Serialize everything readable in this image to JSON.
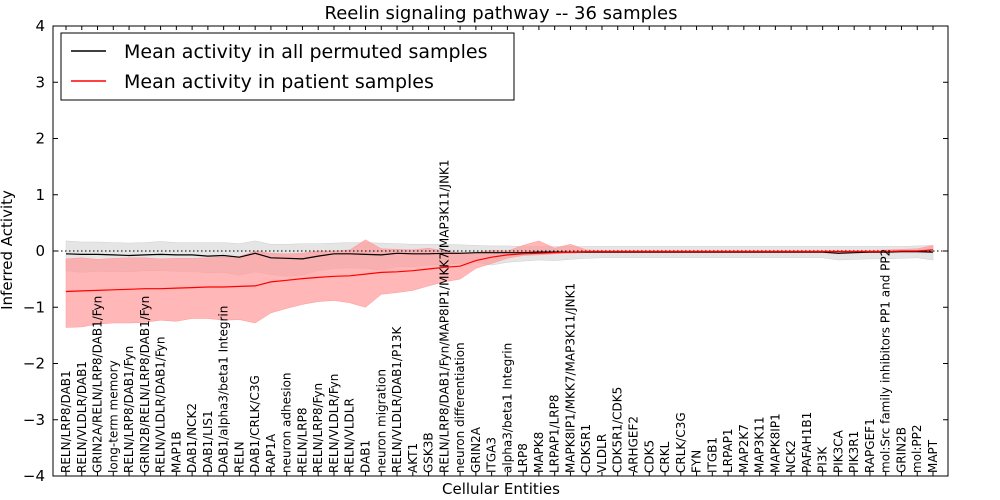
{
  "chart_data": {
    "type": "line",
    "title": "Reelin signaling pathway -- 36 samples",
    "xlabel": "Cellular Entities",
    "ylabel": "Inferred Activity",
    "ylim": [
      -4,
      4
    ],
    "yticks": [
      "4",
      "3",
      "2",
      "1",
      "0",
      "−1",
      "−2",
      "−3",
      "−4"
    ],
    "grid": false,
    "legend_position": "top-left",
    "colors": {
      "permuted": "#000000",
      "patient": "#ff0000",
      "permuted_band": "#d0d0d0",
      "patient_band": "#ff9999"
    },
    "categories": [
      "RELN/LRP8/DAB1",
      "RELN/VLDLR/DAB1",
      "GRIN2A/RELN/LRP8/DAB1/Fyn",
      "long-term memory",
      "RELN/LRP8/DAB1/Fyn",
      "GRIN2B/RELN/LRP8/DAB1/Fyn",
      "RELN/VLDLR/DAB1/Fyn",
      "MAP1B",
      "DAB1/NCK2",
      "DAB1/LIS1",
      "DAB1/alpha3/beta1 Integrin",
      "RELN",
      "DAB1/CRLK/C3G",
      "RAP1A",
      "neuron adhesion",
      "RELN/LRP8",
      "RELN/LRP8/Fyn",
      "RELN/VLDLR/Fyn",
      "RELN/VLDLR",
      "DAB1",
      "neuron migration",
      "RELN/VLDLR/DAB1/P13K",
      "AKT1",
      "GSK3B",
      "RELN/LRP8/DAB1/Fyn/MAP8IP1/MKK7/MAP3K11/JNK1",
      "neuron differentiation",
      "GRIN2A",
      "ITGA3",
      "alpha3/beta1 Integrin",
      "LRP8",
      "MAPK8",
      "LRPAP1/LRP8",
      "MAPK8IP1/MKK7/MAP3K11/JNK1",
      "CDK5R1",
      "VLDLR",
      "CDK5R1/CDK5",
      "ARHGEF2",
      "CDK5",
      "CRKL",
      "CRLK/C3G",
      "FYN",
      "ITGB1",
      "LRPAP1",
      "MAP2K7",
      "MAP3K11",
      "MAPK8IP1",
      "NCK2",
      "PAFAH1B1",
      "PI3K",
      "PIK3CA",
      "PIK3R1",
      "RAPGEF1",
      "mol:Src family inhibitors PP1 and PP2",
      "GRIN2B",
      "mol:PP2",
      "MAPT"
    ],
    "series": [
      {
        "name": "Mean activity in all permuted samples",
        "color": "#000000",
        "values": [
          -0.05,
          -0.06,
          -0.06,
          -0.07,
          -0.08,
          -0.07,
          -0.06,
          -0.07,
          -0.07,
          -0.09,
          -0.08,
          -0.11,
          -0.04,
          -0.12,
          -0.13,
          -0.14,
          -0.09,
          -0.05,
          -0.05,
          -0.06,
          -0.07,
          -0.04,
          -0.05,
          -0.05,
          -0.04,
          -0.04,
          -0.03,
          -0.03,
          -0.03,
          -0.03,
          -0.02,
          -0.02,
          -0.02,
          -0.02,
          -0.02,
          -0.02,
          -0.02,
          -0.02,
          -0.02,
          -0.02,
          -0.02,
          -0.02,
          -0.02,
          -0.02,
          -0.02,
          -0.02,
          -0.02,
          -0.02,
          -0.02,
          -0.04,
          -0.03,
          -0.02,
          -0.02,
          -0.01,
          -0.01,
          -0.02
        ],
        "lower": [
          -0.35,
          -0.38,
          -0.36,
          -0.37,
          -0.37,
          -0.35,
          -0.35,
          -0.36,
          -0.36,
          -0.39,
          -0.38,
          -0.43,
          -0.37,
          -0.42,
          -0.45,
          -0.43,
          -0.35,
          -0.31,
          -0.3,
          -0.31,
          -0.34,
          -0.28,
          -0.28,
          -0.25,
          -0.24,
          -0.22,
          -0.2,
          -0.25,
          -0.2,
          -0.18,
          -0.16,
          -0.17,
          -0.15,
          -0.13,
          -0.12,
          -0.12,
          -0.12,
          -0.12,
          -0.12,
          -0.12,
          -0.12,
          -0.12,
          -0.12,
          -0.12,
          -0.12,
          -0.12,
          -0.12,
          -0.12,
          -0.12,
          -0.16,
          -0.15,
          -0.14,
          -0.14,
          -0.13,
          -0.12,
          -0.16
        ],
        "upper": [
          0.18,
          0.16,
          0.16,
          0.15,
          0.14,
          0.15,
          0.17,
          0.15,
          0.15,
          0.15,
          0.15,
          0.13,
          0.18,
          0.12,
          0.12,
          0.13,
          0.13,
          0.14,
          0.15,
          0.15,
          0.14,
          0.13,
          0.12,
          0.12,
          0.12,
          0.11,
          0.1,
          0.09,
          0.09,
          0.08,
          0.08,
          0.08,
          0.08,
          0.08,
          0.08,
          0.08,
          0.08,
          0.08,
          0.08,
          0.08,
          0.08,
          0.08,
          0.08,
          0.08,
          0.08,
          0.08,
          0.08,
          0.08,
          0.08,
          0.08,
          0.08,
          0.08,
          0.08,
          0.08,
          0.09,
          0.1
        ]
      },
      {
        "name": "Mean activity in patient samples",
        "color": "#ff0000",
        "values": [
          -0.72,
          -0.71,
          -0.7,
          -0.69,
          -0.68,
          -0.67,
          -0.67,
          -0.66,
          -0.65,
          -0.64,
          -0.64,
          -0.63,
          -0.62,
          -0.55,
          -0.52,
          -0.49,
          -0.47,
          -0.45,
          -0.44,
          -0.41,
          -0.38,
          -0.37,
          -0.35,
          -0.32,
          -0.29,
          -0.27,
          -0.17,
          -0.11,
          -0.07,
          -0.05,
          -0.04,
          -0.03,
          -0.02,
          -0.01,
          -0.01,
          -0.01,
          -0.01,
          -0.01,
          -0.01,
          -0.01,
          -0.01,
          -0.01,
          -0.01,
          -0.01,
          -0.01,
          -0.01,
          -0.01,
          -0.01,
          -0.01,
          -0.01,
          -0.01,
          -0.01,
          -0.01,
          0.0,
          0.0,
          0.02
        ],
        "lower": [
          -1.36,
          -1.35,
          -1.3,
          -1.28,
          -1.28,
          -1.27,
          -1.23,
          -1.25,
          -1.2,
          -1.2,
          -1.23,
          -1.22,
          -1.28,
          -1.1,
          -1.02,
          -0.95,
          -0.9,
          -0.88,
          -0.92,
          -1.0,
          -0.77,
          -0.74,
          -0.7,
          -0.62,
          -0.55,
          -0.5,
          -0.31,
          -0.22,
          -0.13,
          -0.08,
          -0.07,
          -0.05,
          -0.04,
          -0.03,
          -0.03,
          -0.03,
          -0.03,
          -0.03,
          -0.03,
          -0.03,
          -0.03,
          -0.03,
          -0.03,
          -0.03,
          -0.03,
          -0.03,
          -0.03,
          -0.03,
          -0.03,
          -0.03,
          -0.03,
          -0.03,
          -0.03,
          -0.02,
          -0.02,
          -0.01
        ],
        "upper": [
          -0.14,
          -0.12,
          -0.15,
          -0.13,
          -0.12,
          -0.12,
          -0.14,
          -0.13,
          -0.13,
          -0.12,
          -0.11,
          -0.1,
          0.0,
          -0.04,
          -0.05,
          -0.04,
          0.0,
          0.0,
          0.02,
          0.2,
          0.04,
          0.03,
          0.02,
          0.05,
          0.0,
          -0.03,
          -0.03,
          0.01,
          0.0,
          0.1,
          0.18,
          0.05,
          0.12,
          0.02,
          0.01,
          0.01,
          0.01,
          0.01,
          0.01,
          0.01,
          0.01,
          0.01,
          0.01,
          0.01,
          0.01,
          0.01,
          0.01,
          0.01,
          0.01,
          0.01,
          0.01,
          0.01,
          0.02,
          0.03,
          0.04,
          0.1
        ]
      }
    ]
  }
}
